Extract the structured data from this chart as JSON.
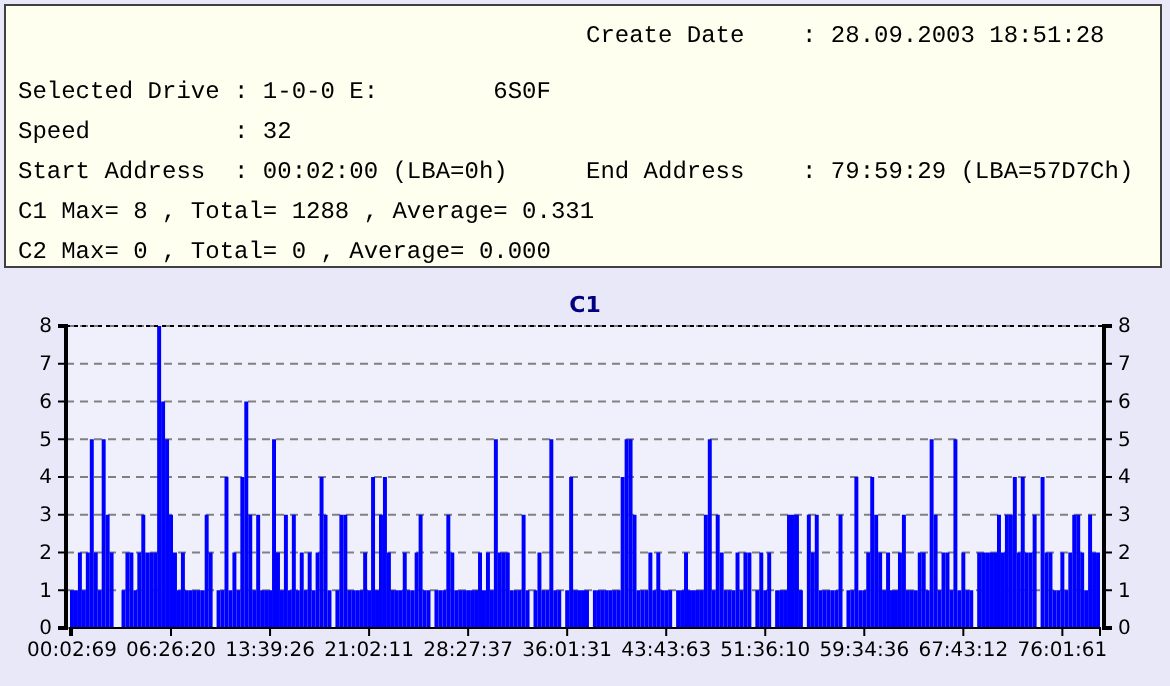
{
  "chart_data": [
    {
      "type": "other",
      "annotations": [
        "Create Date    : 28.09.2003 18:51:28",
        "Selected Drive : 1-0-0 E:        6S0F",
        "Speed          : 32",
        "Start Address  : 00:02:00 (LBA=0h)",
        "End Address    : 79:59:29 (LBA=57D7Ch)",
        "C1 Max= 8 , Total= 1288 , Average= 0.331",
        "C2 Max= 0 , Total= 0 , Average= 0.000"
      ]
    },
    {
      "type": "bar",
      "title": "C1",
      "color": "#0000ff",
      "grid": "y",
      "ylim": [
        0,
        8
      ],
      "yticks": [
        0,
        1,
        2,
        3,
        4,
        5,
        6,
        7,
        8
      ],
      "y2lim": [
        0,
        8
      ],
      "y2ticks": [
        0,
        1,
        2,
        3,
        4,
        5,
        6,
        7,
        8
      ],
      "categories": [
        "00:02:69",
        null,
        null,
        null,
        null,
        null,
        null,
        null,
        null,
        null,
        null,
        null,
        null,
        null,
        null,
        null,
        null,
        null,
        null,
        null,
        null,
        null,
        null,
        null,
        null,
        "06:26:20",
        null,
        null,
        null,
        null,
        null,
        null,
        null,
        null,
        null,
        null,
        null,
        null,
        null,
        null,
        null,
        null,
        null,
        null,
        null,
        null,
        null,
        null,
        null,
        null,
        "13:39:26",
        null,
        null,
        null,
        null,
        null,
        null,
        null,
        null,
        null,
        null,
        null,
        null,
        null,
        null,
        null,
        null,
        null,
        null,
        null,
        null,
        null,
        null,
        null,
        null,
        "21:02:11",
        null,
        null,
        null,
        null,
        null,
        null,
        null,
        null,
        null,
        null,
        null,
        null,
        null,
        null,
        null,
        null,
        null,
        null,
        null,
        null,
        null,
        null,
        null,
        null,
        "28:27:37",
        null,
        null,
        null,
        null,
        null,
        null,
        null,
        null,
        null,
        null,
        null,
        null,
        null,
        null,
        null,
        null,
        null,
        null,
        null,
        null,
        null,
        null,
        null,
        null,
        "36:01:31",
        null,
        null,
        null,
        null,
        null,
        null,
        null,
        null,
        null,
        null,
        null,
        null,
        null,
        null,
        null,
        null,
        null,
        null,
        null,
        null,
        null,
        null,
        null,
        null,
        "43:43:63",
        null,
        null,
        null,
        null,
        null,
        null,
        null,
        null,
        null,
        null,
        null,
        null,
        null,
        null,
        null,
        null,
        null,
        null,
        null,
        null,
        null,
        null,
        null,
        null,
        "51:36:10",
        null,
        null,
        null,
        null,
        null,
        null,
        null,
        null,
        null,
        null,
        null,
        null,
        null,
        null,
        null,
        null,
        null,
        null,
        null,
        null,
        null,
        null,
        null,
        null,
        "59:34:36",
        null,
        null,
        null,
        null,
        null,
        null,
        null,
        null,
        null,
        null,
        null,
        null,
        null,
        null,
        null,
        null,
        null,
        null,
        null,
        null,
        null,
        null,
        null,
        null,
        "67:43:12",
        null,
        null,
        null,
        null,
        null,
        null,
        null,
        null,
        null,
        null,
        null,
        null,
        null,
        null,
        null,
        null,
        null,
        null,
        null,
        null,
        null,
        null,
        null,
        null,
        "76:01:61",
        null,
        null,
        null,
        null,
        null,
        null,
        null,
        null,
        null
      ],
      "values": [
        1,
        1,
        2,
        1,
        2,
        5,
        2,
        1,
        5,
        3,
        2,
        0,
        0,
        1,
        2,
        2,
        1,
        2,
        3,
        2,
        2,
        2,
        8,
        6,
        5,
        3,
        2,
        1,
        2,
        1,
        1,
        1,
        1,
        1,
        3,
        2,
        0,
        1,
        1,
        4,
        1,
        2,
        1,
        4,
        6,
        3,
        1,
        3,
        1,
        1,
        1,
        5,
        2,
        1,
        3,
        1,
        3,
        1,
        2,
        1,
        2,
        1,
        2,
        4,
        3,
        1,
        0,
        1,
        3,
        3,
        1,
        1,
        1,
        1,
        2,
        1,
        4,
        1,
        3,
        4,
        2,
        1,
        1,
        1,
        2,
        1,
        1,
        2,
        3,
        1,
        1,
        0,
        1,
        1,
        1,
        3,
        2,
        1,
        1,
        1,
        1,
        1,
        1,
        2,
        1,
        2,
        1,
        5,
        2,
        2,
        2,
        1,
        1,
        1,
        3,
        1,
        0,
        1,
        2,
        1,
        1,
        5,
        1,
        1,
        0,
        1,
        4,
        1,
        1,
        1,
        1,
        0,
        1,
        1,
        1,
        1,
        1,
        1,
        1,
        4,
        5,
        5,
        3,
        1,
        1,
        1,
        2,
        1,
        2,
        1,
        1,
        1,
        0,
        1,
        1,
        2,
        1,
        1,
        1,
        1,
        3,
        5,
        1,
        3,
        2,
        1,
        1,
        1,
        2,
        1,
        2,
        2,
        0,
        1,
        2,
        1,
        2,
        0,
        1,
        1,
        1,
        3,
        3,
        3,
        1,
        0,
        3,
        2,
        3,
        1,
        1,
        1,
        1,
        1,
        3,
        0,
        1,
        1,
        4,
        1,
        1,
        2,
        4,
        3,
        2,
        1,
        2,
        1,
        1,
        2,
        3,
        1,
        1,
        1,
        2,
        2,
        1,
        5,
        3,
        1,
        2,
        2,
        1,
        5,
        1,
        2,
        1,
        1,
        0,
        2,
        2,
        2,
        2,
        2,
        3,
        2,
        3,
        3,
        4,
        2,
        4,
        2,
        2,
        3,
        0,
        4,
        2,
        2,
        1,
        1,
        2,
        1,
        2,
        3,
        3,
        2,
        1,
        3,
        2,
        2
      ]
    }
  ]
}
